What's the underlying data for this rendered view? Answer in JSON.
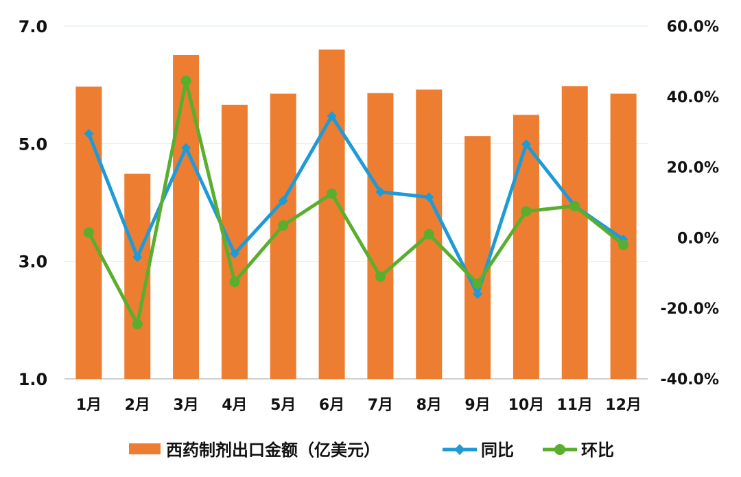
{
  "chart_data": {
    "type": "bar",
    "categories": [
      "1月",
      "2月",
      "3月",
      "4月",
      "5月",
      "6月",
      "7月",
      "8月",
      "9月",
      "10月",
      "11月",
      "12月"
    ],
    "series": [
      {
        "name": "西药制剂出口金额（亿美元）",
        "type": "bar",
        "axis": "left",
        "color": "#ED7D31",
        "values": [
          5.97,
          4.49,
          6.51,
          5.66,
          5.85,
          6.6,
          5.86,
          5.92,
          5.13,
          5.49,
          5.98,
          5.85
        ]
      },
      {
        "name": "同比",
        "type": "line",
        "axis": "right",
        "color": "#1E9BD7",
        "marker": "diamond",
        "values": [
          29.5,
          -5.5,
          25.5,
          -4.5,
          10.5,
          34.5,
          13.0,
          11.5,
          -16.0,
          26.5,
          9.0,
          -0.5
        ]
      },
      {
        "name": "环比",
        "type": "line",
        "axis": "right",
        "color": "#5AAE2E",
        "marker": "circle",
        "values": [
          1.5,
          -24.5,
          44.5,
          -12.5,
          3.5,
          12.5,
          -11.0,
          1.0,
          -13.0,
          7.5,
          9.0,
          -2.0
        ]
      }
    ],
    "y_left": {
      "ticks": [
        "7.0",
        "5.0",
        "3.0",
        "1.0"
      ],
      "tick_values": [
        7,
        5,
        3,
        1
      ],
      "ylim": [
        1,
        7
      ]
    },
    "y_right": {
      "ticks": [
        "60.0%",
        "40.0%",
        "20.0%",
        "0.0%",
        "-20.0%",
        "-40.0%"
      ],
      "tick_values": [
        60,
        40,
        20,
        0,
        -20,
        -40
      ],
      "ylim": [
        -40,
        60
      ]
    },
    "grid": true,
    "legend": {
      "position": "bottom",
      "items": [
        "西药制剂出口金额（亿美元）",
        "同比",
        "环比"
      ]
    }
  }
}
